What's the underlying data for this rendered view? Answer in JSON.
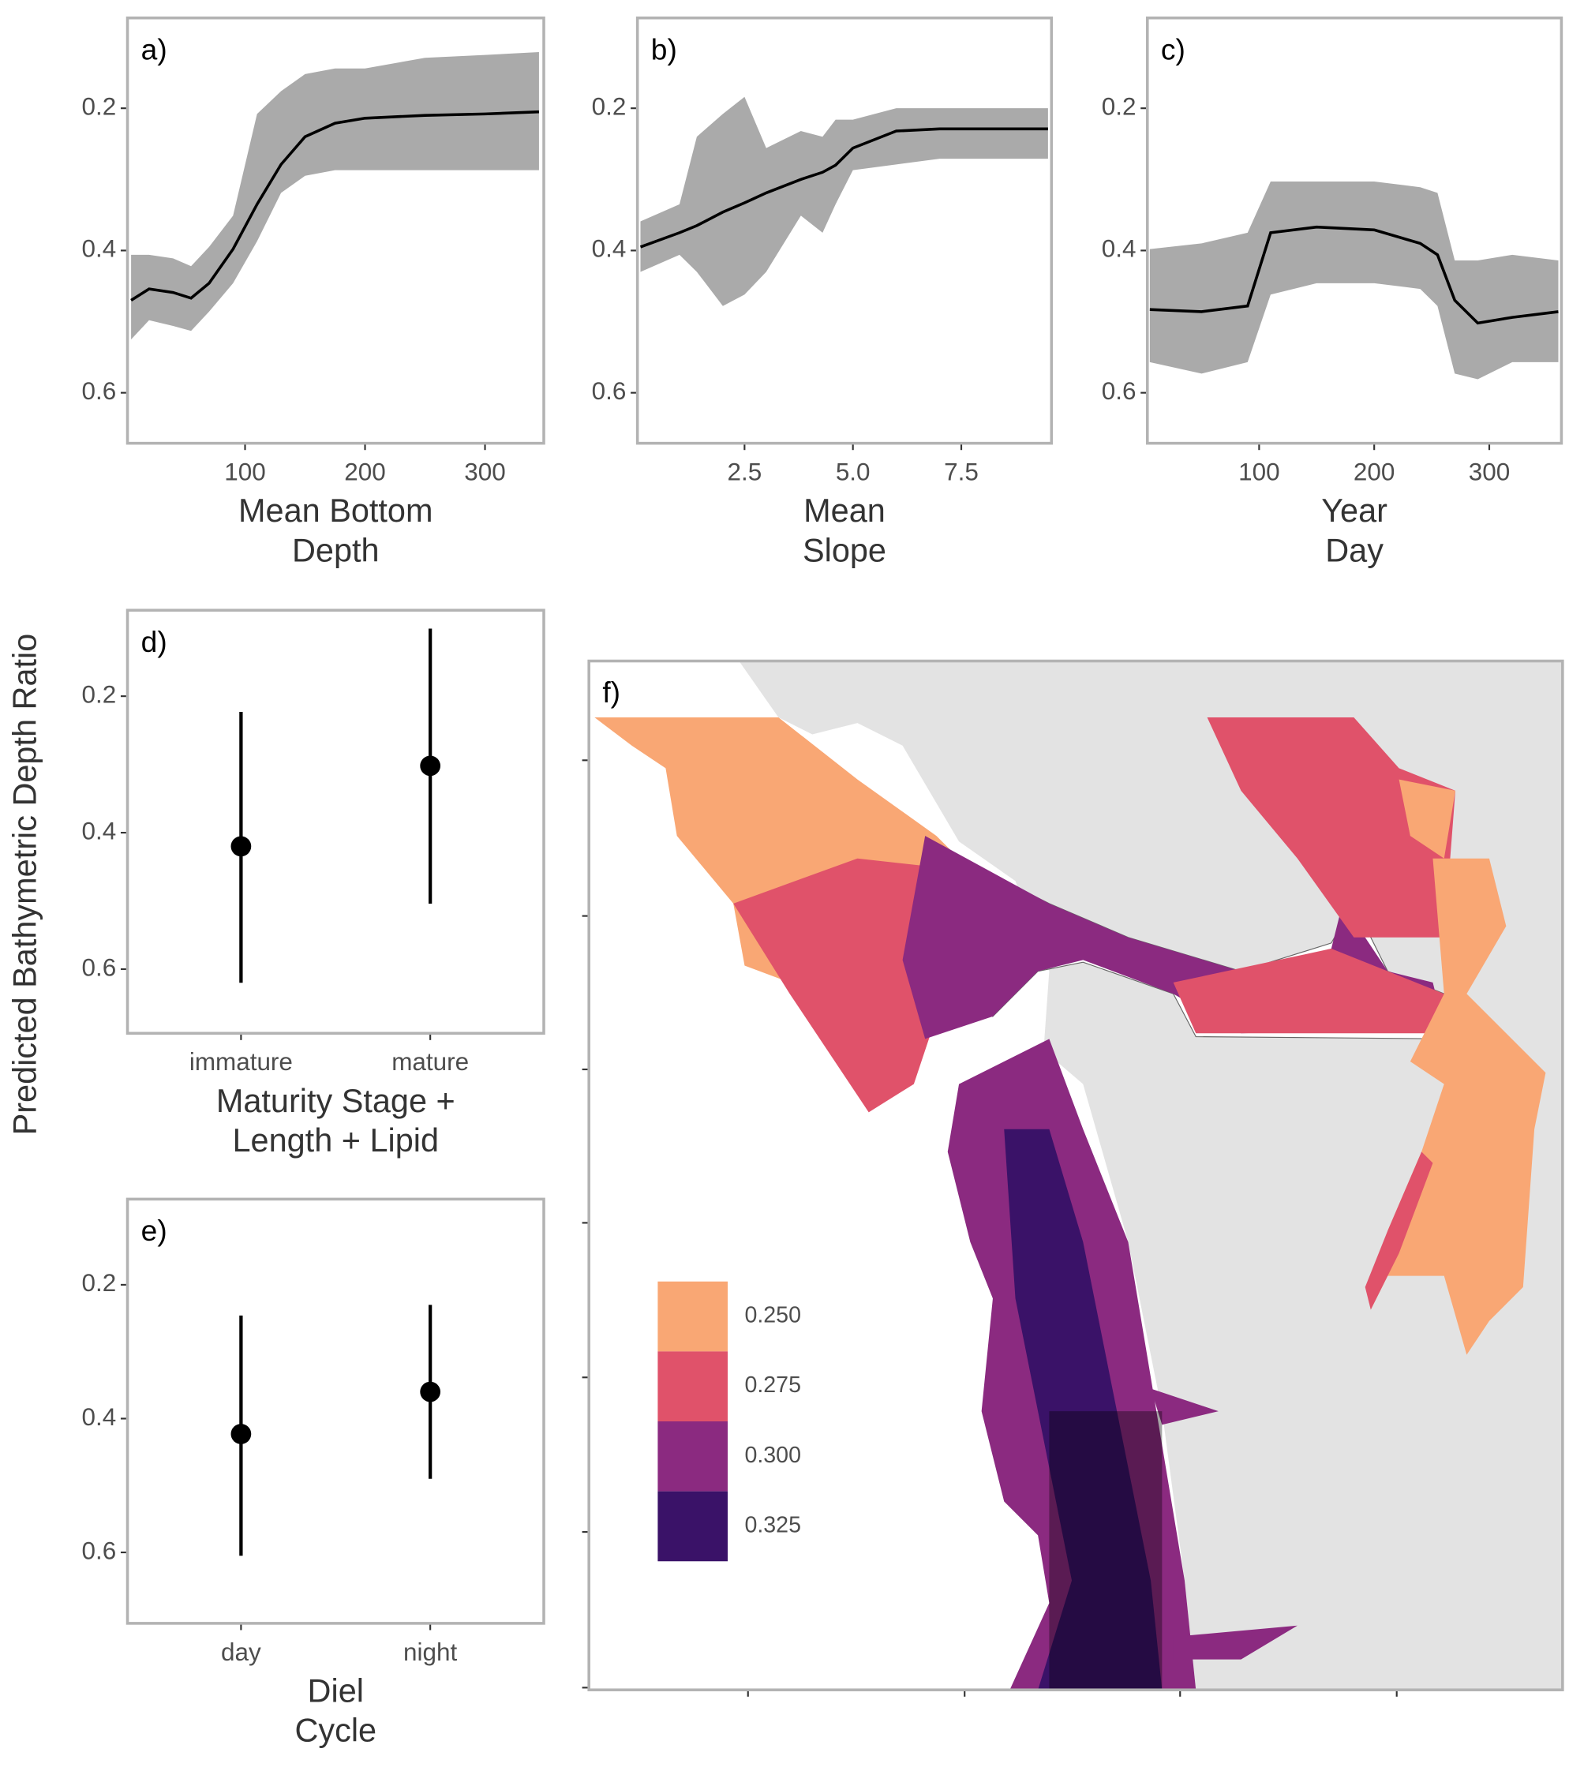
{
  "y_label": "Predicted Bathymetric Depth Ratio",
  "chart_data": [
    {
      "type": "ribbon_line",
      "panel_label": "a)",
      "x_label": [
        "Mean Bottom",
        "Depth"
      ],
      "xlim": [
        2,
        349
      ],
      "xticks": [
        100,
        200,
        300
      ],
      "ylim": [
        0.073,
        0.671
      ],
      "y_reversed": true,
      "yticks": [
        0.2,
        0.4,
        0.6
      ],
      "x": [
        5,
        20,
        40,
        55,
        70,
        90,
        110,
        130,
        150,
        175,
        200,
        250,
        300,
        345
      ],
      "values": [
        0.47,
        0.454,
        0.459,
        0.467,
        0.446,
        0.398,
        0.335,
        0.279,
        0.24,
        0.221,
        0.214,
        0.21,
        0.208,
        0.205
      ],
      "lower": [
        0.406,
        0.406,
        0.411,
        0.422,
        0.395,
        0.351,
        0.208,
        0.176,
        0.152,
        0.144,
        0.144,
        0.129,
        0.125,
        0.121
      ],
      "upper": [
        0.525,
        0.498,
        0.506,
        0.513,
        0.486,
        0.446,
        0.387,
        0.319,
        0.295,
        0.287,
        0.287,
        0.287,
        0.287,
        0.287
      ],
      "line_color": "#000000",
      "band_color": "#aaaaaa"
    },
    {
      "type": "ribbon_line",
      "panel_label": "b)",
      "x_label": [
        "Mean",
        "Slope"
      ],
      "xlim": [
        0.03,
        9.58
      ],
      "xticks": [
        2.5,
        {
          "value": 5,
          "label": "5.0"
        },
        7.5
      ],
      "ylim": [
        0.073,
        0.671
      ],
      "y_reversed": true,
      "yticks": [
        0.2,
        0.4,
        0.6
      ],
      "x": [
        0.1,
        1,
        1.4,
        2,
        2.5,
        3,
        3.8,
        4.3,
        4.6,
        5,
        6,
        7,
        9.5
      ],
      "values": [
        0.395,
        0.375,
        0.365,
        0.346,
        0.333,
        0.319,
        0.3,
        0.29,
        0.28,
        0.256,
        0.232,
        0.229,
        0.229
      ],
      "lower": [
        0.359,
        0.335,
        0.24,
        0.208,
        0.184,
        0.256,
        0.232,
        0.24,
        0.216,
        0.216,
        0.2,
        0.2,
        0.2
      ],
      "upper": [
        0.43,
        0.406,
        0.43,
        0.478,
        0.462,
        0.43,
        0.351,
        0.375,
        0.335,
        0.287,
        0.279,
        0.271,
        0.271
      ],
      "line_color": "#000000",
      "band_color": "#aaaaaa"
    },
    {
      "type": "ribbon_line",
      "panel_label": "c)",
      "x_label": [
        "Year",
        "Day"
      ],
      "xlim": [
        2.9,
        362.7
      ],
      "xticks": [
        100,
        200,
        300
      ],
      "ylim": [
        0.073,
        0.671
      ],
      "y_reversed": true,
      "yticks": [
        0.2,
        0.4,
        0.6
      ],
      "x": [
        5,
        50,
        90,
        110,
        150,
        200,
        240,
        255,
        270,
        290,
        320,
        360
      ],
      "values": [
        0.483,
        0.486,
        0.478,
        0.375,
        0.367,
        0.371,
        0.39,
        0.406,
        0.47,
        0.502,
        0.494,
        0.486
      ],
      "lower": [
        0.398,
        0.39,
        0.375,
        0.303,
        0.303,
        0.303,
        0.311,
        0.319,
        0.414,
        0.414,
        0.406,
        0.414
      ],
      "upper": [
        0.557,
        0.573,
        0.557,
        0.462,
        0.446,
        0.446,
        0.454,
        0.478,
        0.573,
        0.581,
        0.557,
        0.557
      ],
      "line_color": "#000000",
      "band_color": "#aaaaaa"
    },
    {
      "type": "pointrange",
      "panel_label": "d)",
      "x_label": [
        "Maturity Stage +",
        "Length + Lipid"
      ],
      "categories": [
        "immature",
        "mature"
      ],
      "ylim": [
        0.074,
        0.694
      ],
      "y_reversed": true,
      "yticks": [
        0.2,
        0.4,
        0.6
      ],
      "values": [
        0.42,
        0.302
      ],
      "lower": [
        0.223,
        0.101
      ],
      "upper": [
        0.62,
        0.504
      ],
      "color": "#000000"
    },
    {
      "type": "pointrange",
      "panel_label": "e)",
      "x_label": [
        "Diel",
        "Cycle"
      ],
      "categories": [
        "day",
        "night"
      ],
      "ylim": [
        0.072,
        0.706
      ],
      "y_reversed": true,
      "yticks": [
        0.2,
        0.4,
        0.6
      ],
      "values": [
        0.423,
        0.36
      ],
      "lower": [
        0.246,
        0.23
      ],
      "upper": [
        0.605,
        0.49
      ],
      "color": "#000000"
    },
    {
      "type": "map",
      "panel_label": "f)",
      "land_color": "#e3e3e3",
      "legend": [
        {
          "value": 0.25,
          "label": "0.250",
          "color": "#f9a774"
        },
        {
          "value": 0.275,
          "label": "0.275",
          "color": "#e0526a"
        },
        {
          "value": 0.3,
          "label": "0.300",
          "color": "#8b2a80"
        },
        {
          "value": 0.325,
          "label": "0.325",
          "color": "#3a1268"
        }
      ]
    }
  ]
}
